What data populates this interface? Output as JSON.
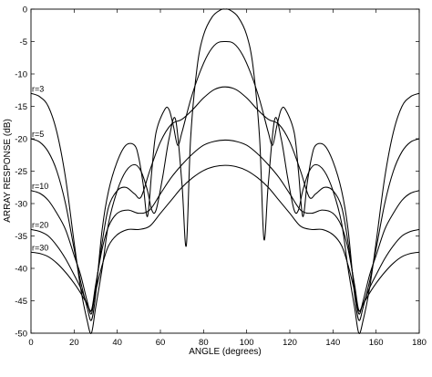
{
  "chart_data": {
    "type": "line",
    "title": "",
    "xlabel": "ANGLE (degrees)",
    "ylabel": "ARRAY RESPONSE (dB)",
    "xlim": [
      0,
      180
    ],
    "ylim": [
      -50,
      0
    ],
    "xticks": [
      0,
      20,
      40,
      60,
      80,
      100,
      120,
      140,
      160,
      180
    ],
    "yticks": [
      0,
      -5,
      -10,
      -15,
      -20,
      -25,
      -30,
      -35,
      -40,
      -45,
      -50
    ],
    "grid": false,
    "legend": "inline labels at left edge",
    "series": [
      {
        "name": "r=3",
        "x": [
          0,
          4,
          8,
          12,
          16,
          20,
          23,
          26,
          28,
          30,
          33,
          36,
          40,
          44,
          48,
          51,
          54,
          56,
          58,
          61,
          64,
          67,
          70,
          72,
          74,
          77,
          80,
          84,
          88,
          90,
          92,
          96,
          100,
          103,
          106,
          108,
          110,
          113,
          116,
          119,
          122,
          124,
          126,
          129,
          132,
          136,
          140,
          144,
          147,
          150,
          152,
          154,
          157,
          160,
          164,
          168,
          172,
          176,
          180
        ],
        "y": [
          -13,
          -13.5,
          -15,
          -19,
          -26,
          -36,
          -43,
          -48,
          -50,
          -46,
          -40,
          -33,
          -28,
          -25,
          -24,
          -25,
          -28,
          -31,
          -31,
          -26,
          -20,
          -17,
          -27,
          -36.5,
          -20,
          -9,
          -4,
          -1.2,
          -0.1,
          0,
          -0.1,
          -1.2,
          -4,
          -9,
          -20,
          -35.5,
          -27,
          -17,
          -20,
          -26,
          -31,
          -31,
          -28,
          -25,
          -24,
          -25,
          -28,
          -33,
          -40,
          -46,
          -50,
          -48,
          -43,
          -36,
          -26,
          -19,
          -15,
          -13.5,
          -13
        ]
      },
      {
        "name": "r=5",
        "x": [
          0,
          4,
          8,
          12,
          16,
          20,
          23,
          26,
          28,
          30,
          33,
          36,
          40,
          44,
          48,
          50,
          52,
          54,
          56,
          58,
          62,
          64,
          66,
          68,
          70,
          74,
          78,
          82,
          86,
          90,
          94,
          98,
          102,
          106,
          110,
          112,
          114,
          116,
          118,
          122,
          124,
          126,
          128,
          130,
          132,
          136,
          140,
          144,
          147,
          150,
          152,
          154,
          157,
          160,
          164,
          168,
          172,
          176,
          180
        ],
        "y": [
          -20,
          -20.5,
          -22,
          -25,
          -30,
          -37,
          -42,
          -46,
          -48,
          -44,
          -34,
          -28,
          -23.5,
          -21,
          -21,
          -23,
          -27,
          -32,
          -25,
          -19,
          -15.5,
          -15.5,
          -18,
          -21,
          -19,
          -14,
          -10,
          -7,
          -5.3,
          -5,
          -5.3,
          -7,
          -10,
          -14,
          -19,
          -21,
          -18,
          -15.5,
          -15.5,
          -19,
          -25,
          -32,
          -27,
          -23,
          -21,
          -21,
          -23.5,
          -28,
          -34,
          -44,
          -48,
          -46,
          -42,
          -37,
          -30,
          -25,
          -22,
          -20.5,
          -20
        ]
      },
      {
        "name": "r=10",
        "x": [
          0,
          4,
          8,
          12,
          16,
          20,
          23,
          26,
          28,
          30,
          33,
          36,
          40,
          44,
          48,
          51,
          55,
          60,
          65,
          70,
          75,
          80,
          85,
          90,
          95,
          100,
          105,
          110,
          115,
          120,
          125,
          129,
          132,
          136,
          140,
          144,
          147,
          150,
          152,
          154,
          157,
          160,
          164,
          168,
          172,
          176,
          180
        ],
        "y": [
          -28,
          -28.4,
          -29.5,
          -31.5,
          -34,
          -38,
          -41,
          -45,
          -47,
          -43,
          -36,
          -30.5,
          -28,
          -27.5,
          -28.5,
          -29,
          -25,
          -20.5,
          -17.8,
          -17,
          -15.5,
          -13.7,
          -12.4,
          -12,
          -12.4,
          -13.7,
          -15.5,
          -17,
          -17.8,
          -20.5,
          -25,
          -29,
          -28.5,
          -27.5,
          -28,
          -30.5,
          -36,
          -43,
          -47,
          -45,
          -41,
          -38,
          -34,
          -31.5,
          -29.5,
          -28.4,
          -28
        ]
      },
      {
        "name": "r=20",
        "x": [
          0,
          4,
          8,
          12,
          16,
          20,
          23,
          26,
          28,
          30,
          33,
          36,
          40,
          45,
          50,
          55,
          60,
          65,
          70,
          75,
          80,
          85,
          90,
          95,
          100,
          105,
          110,
          115,
          120,
          125,
          130,
          135,
          140,
          144,
          147,
          150,
          152,
          154,
          157,
          160,
          164,
          168,
          172,
          176,
          180
        ],
        "y": [
          -34,
          -34.3,
          -35,
          -36.5,
          -38.5,
          -41,
          -43,
          -45.5,
          -46.5,
          -42.5,
          -37,
          -33.5,
          -31.5,
          -31,
          -31.5,
          -31,
          -28.5,
          -26,
          -24,
          -22.3,
          -21,
          -20.4,
          -20.2,
          -20.4,
          -21,
          -22.3,
          -24,
          -26,
          -28.5,
          -31,
          -31.5,
          -31,
          -31.5,
          -33.5,
          -37,
          -42.5,
          -46.5,
          -45.5,
          -43,
          -41,
          -38.5,
          -36.5,
          -35,
          -34.3,
          -34
        ]
      },
      {
        "name": "r=30",
        "x": [
          0,
          4,
          8,
          12,
          16,
          20,
          23,
          26,
          28,
          30,
          33,
          36,
          40,
          45,
          50,
          55,
          60,
          65,
          70,
          75,
          80,
          85,
          90,
          95,
          100,
          105,
          110,
          115,
          120,
          125,
          130,
          135,
          140,
          144,
          147,
          150,
          152,
          154,
          157,
          160,
          164,
          168,
          172,
          176,
          180
        ],
        "y": [
          -37.5,
          -37.7,
          -38.2,
          -39.2,
          -40.6,
          -42.3,
          -43.8,
          -45.5,
          -46.5,
          -43.5,
          -39.5,
          -36.5,
          -34.8,
          -34,
          -34,
          -33.5,
          -31.5,
          -29.5,
          -27.5,
          -26,
          -24.9,
          -24.3,
          -24.1,
          -24.3,
          -24.9,
          -26,
          -27.5,
          -29.5,
          -31.5,
          -33.5,
          -34,
          -34,
          -34.8,
          -36.5,
          -39.5,
          -43.5,
          -46.5,
          -45.5,
          -43.8,
          -42.3,
          -40.6,
          -39.2,
          -38.2,
          -37.7,
          -37.5
        ]
      }
    ],
    "series_label_points": [
      {
        "name": "r=3",
        "x": 0,
        "y": -13
      },
      {
        "name": "r=5",
        "x": 0,
        "y": -20
      },
      {
        "name": "r=10",
        "x": 0,
        "y": -28
      },
      {
        "name": "r=20",
        "x": 0,
        "y": -34
      },
      {
        "name": "r=30",
        "x": 0,
        "y": -37.5
      }
    ]
  }
}
